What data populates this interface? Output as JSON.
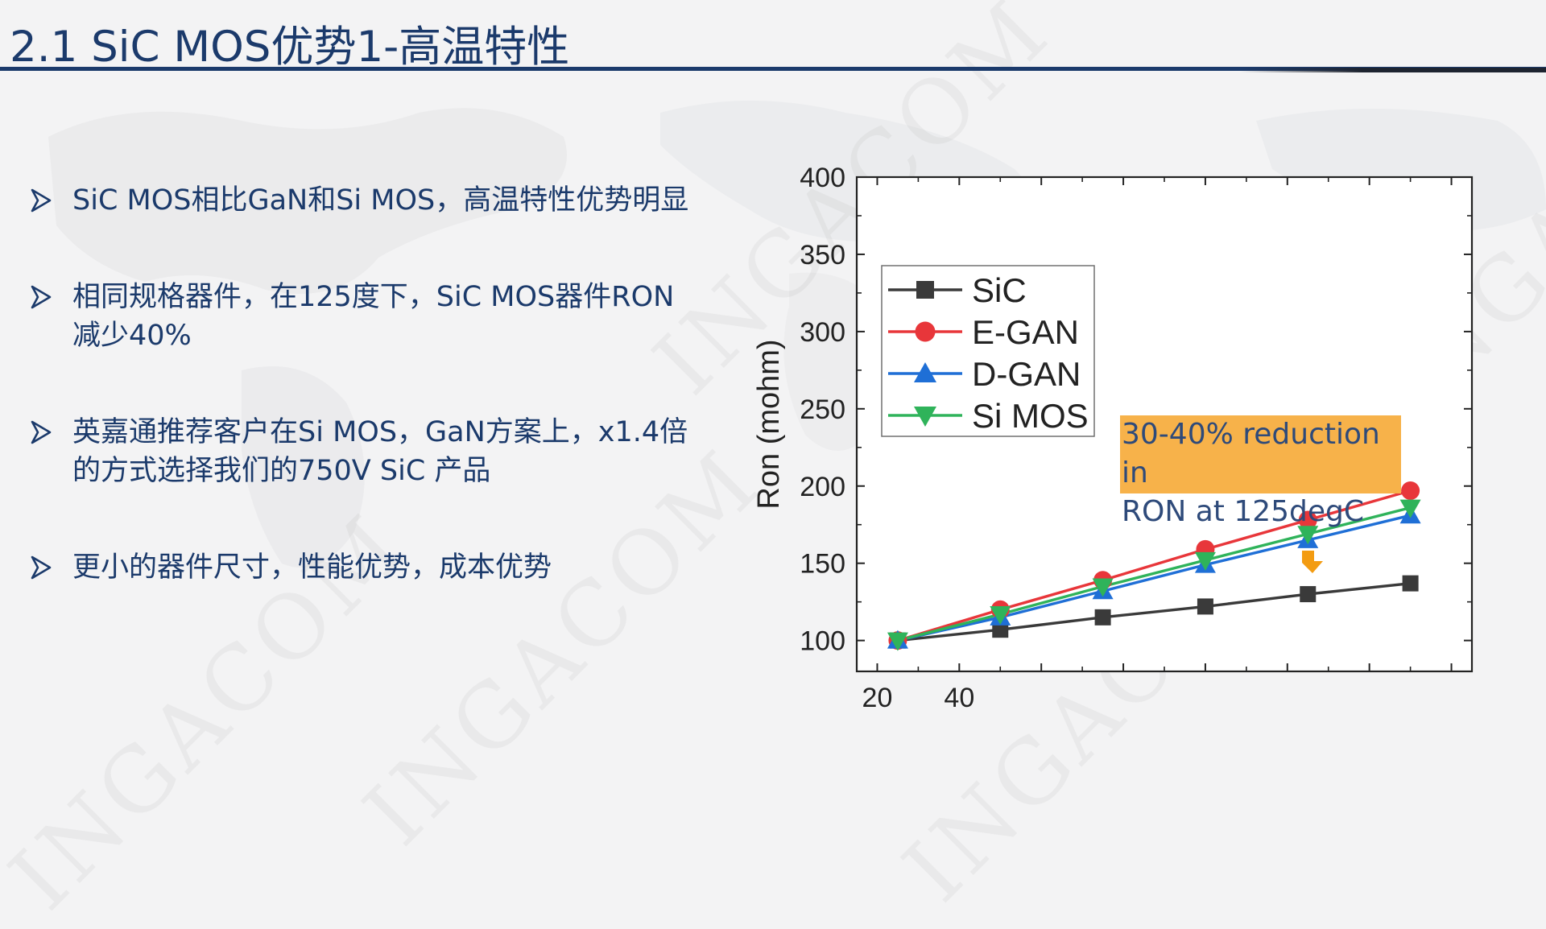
{
  "slide": {
    "title": "2.1 SiC MOS优势1-高温特性"
  },
  "bullets": [
    {
      "icon": "arrow-bullet-icon",
      "text": "SiC MOS相比GaN和Si MOS，高温特性优势明显"
    },
    {
      "icon": "arrow-bullet-icon",
      "text": "相同规格器件，在125度下，SiC MOS器件RON\n减少40%"
    },
    {
      "icon": "arrow-bullet-icon",
      "text": "英嘉通推荐客户在Si MOS，GaN方案上，x1.4倍\n的方式选择我们的750V SiC 产品"
    },
    {
      "icon": "arrow-bullet-icon",
      "text": "更小的器件尺寸，性能优势，成本优势"
    }
  ],
  "watermark": "INGACOM",
  "annotation": {
    "text": "30-40% reduction in\nRON at 125degC",
    "arrow_icon": "down-arrow-icon",
    "box_color": "#f7b24a",
    "arrow_color": "#f39c12"
  },
  "chart_data": {
    "type": "line",
    "title": "",
    "xlabel": "",
    "ylabel": "Ron (mohm)",
    "xlim": [
      15,
      165
    ],
    "ylim": [
      80,
      400
    ],
    "xticks": [
      20,
      40
    ],
    "yticks": [
      100,
      150,
      200,
      250,
      300,
      350,
      400
    ],
    "legend_position": "top-left",
    "grid": false,
    "x": [
      25,
      50,
      75,
      100,
      125,
      150
    ],
    "series": [
      {
        "name": "SiC",
        "color": "#3a3a3a",
        "marker": "square",
        "values": [
          100,
          107,
          115,
          122,
          130,
          137
        ]
      },
      {
        "name": "E-GAN",
        "color": "#e8363a",
        "marker": "circle",
        "values": [
          100,
          120,
          139,
          159,
          178,
          197
        ]
      },
      {
        "name": "D-GAN",
        "color": "#1f6fd6",
        "marker": "triangle-up",
        "values": [
          100,
          115,
          132,
          149,
          165,
          181
        ]
      },
      {
        "name": "Si MOS",
        "color": "#2fb35a",
        "marker": "triangle-down",
        "values": [
          100,
          117,
          135,
          152,
          169,
          186
        ]
      }
    ]
  }
}
